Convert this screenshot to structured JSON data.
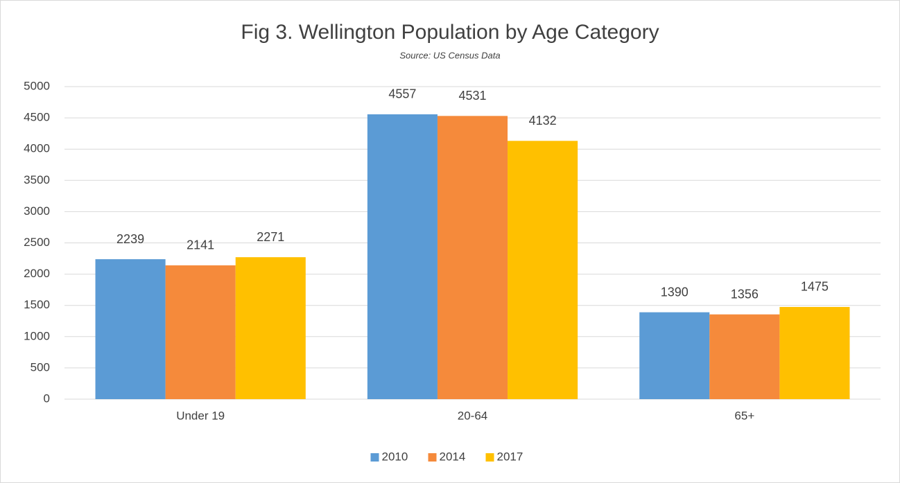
{
  "chart_data": {
    "type": "bar",
    "title": "Fig 3. Wellington Population by Age Category",
    "subtitle": "Source: US Census Data",
    "categories": [
      "Under 19",
      "20-64",
      "65+"
    ],
    "series": [
      {
        "name": "2010",
        "color": "#5b9bd5",
        "values": [
          2239,
          4557,
          1390
        ]
      },
      {
        "name": "2014",
        "color": "#f58a3b",
        "values": [
          2141,
          4531,
          1356
        ]
      },
      {
        "name": "2017",
        "color": "#ffc000",
        "values": [
          2271,
          4132,
          1475
        ]
      }
    ],
    "ylim": [
      0,
      5000
    ],
    "yticks": [
      0,
      500,
      1000,
      1500,
      2000,
      2500,
      3000,
      3500,
      4000,
      4500,
      5000
    ],
    "grid": true,
    "legend": "bottom"
  }
}
